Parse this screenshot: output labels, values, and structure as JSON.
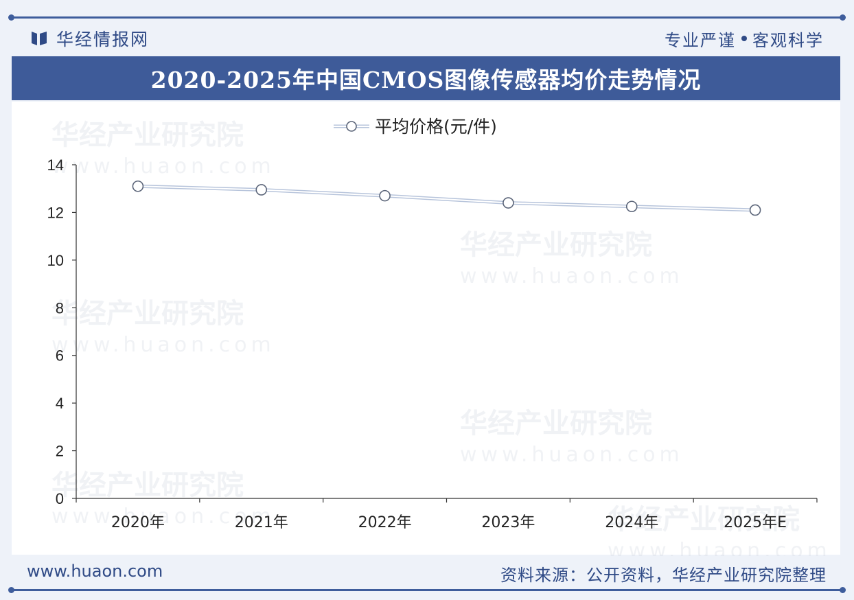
{
  "header": {
    "brand": "华经情报网",
    "slogan_left": "专业严谨",
    "slogan_right": "客观科学"
  },
  "title": "2020-2025年中国CMOS图像传感器均价走势情况",
  "footer": {
    "url": "www.huaon.com",
    "source": "资料来源：公开资料，华经产业研究院整理"
  },
  "watermark": {
    "name": "华经产业研究院",
    "url": "www.huaon.com"
  },
  "colors": {
    "brand_blue": "#3e5b99",
    "line": "#b7c4db",
    "marker_stroke": "#5a6478"
  },
  "chart_data": {
    "type": "line",
    "categories": [
      "2020年",
      "2021年",
      "2022年",
      "2023年",
      "2024年",
      "2025年E"
    ],
    "series": [
      {
        "name": "平均价格(元/件)",
        "values": [
          13.1,
          12.95,
          12.7,
          12.4,
          12.25,
          12.1
        ]
      }
    ],
    "ylim": [
      0,
      14
    ],
    "yticks": [
      "0",
      "2",
      "4",
      "6",
      "8",
      "10",
      "12",
      "14"
    ],
    "xlabel": "",
    "ylabel": "",
    "legend_position": "top-center",
    "grid": false
  }
}
